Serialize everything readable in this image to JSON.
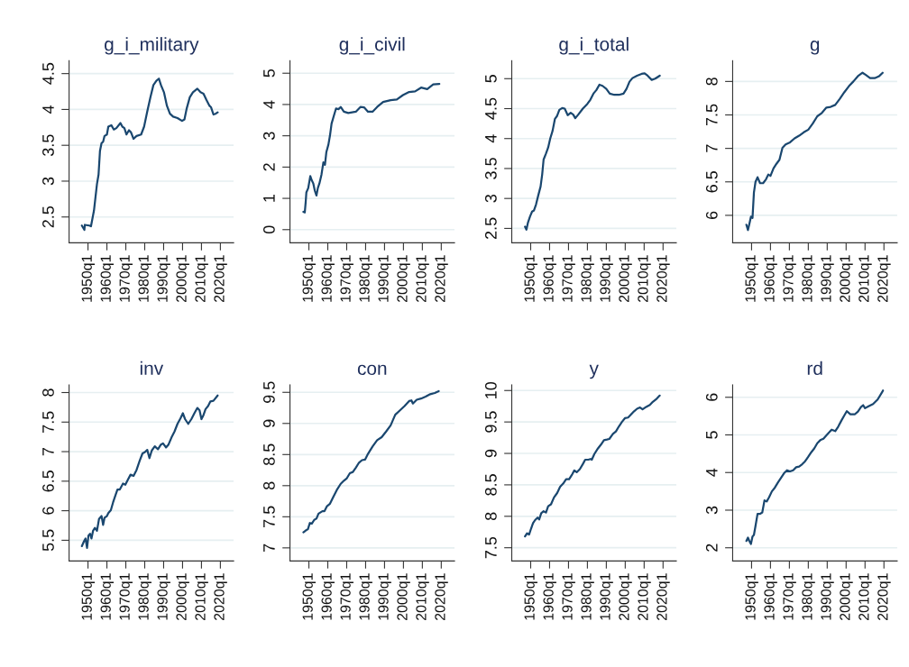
{
  "chart_data": [
    {
      "type": "line",
      "title": "g_i_military",
      "color": "#1a476f",
      "grid": "y",
      "xlim": [
        "1940-01",
        "2027-01"
      ],
      "ylim": [
        2.14,
        4.68
      ],
      "yticks": [
        2.5,
        3,
        3.5,
        4,
        4.5
      ],
      "xticks": [
        {
          "value": "1950-01",
          "label": "1950q1"
        },
        {
          "value": "1960-01",
          "label": "1960q1"
        },
        {
          "value": "1970-01",
          "label": "1970q1"
        },
        {
          "value": "1980-01",
          "label": "1980q1"
        },
        {
          "value": "1990-01",
          "label": "1990q1"
        },
        {
          "value": "2000-01",
          "label": "2000q1"
        },
        {
          "value": "2010-01",
          "label": "2010q1"
        },
        {
          "value": "2020-01",
          "label": "2020q1"
        }
      ],
      "x": [
        "1946-10",
        "1948-02",
        "1948-05",
        "1950-10",
        "1951-08",
        "1953-03",
        "1954-10",
        "1955-08",
        "1956-05",
        "1957-03",
        "1958-01",
        "1958-10",
        "1960-01",
        "1960-10",
        "1962-05",
        "1963-09",
        "1965-01",
        "1967-03",
        "1968-03",
        "1969-04",
        "1970-05",
        "1971-09",
        "1972-10",
        "1974-02",
        "1975-09",
        "1978-02",
        "1979-09",
        "1981-05",
        "1983-01",
        "1984-08",
        "1986-03",
        "1987-07",
        "1988-08",
        "1990-03",
        "1991-10",
        "1993-05",
        "1995-01",
        "1997-05",
        "1999-10",
        "2001-01",
        "2002-03",
        "2003-11",
        "2005-07",
        "2007-11",
        "2009-07",
        "2011-02",
        "2012-09",
        "2014-04",
        "2015-02",
        "2016-05",
        "2017-07",
        "2018-08"
      ],
      "values": [
        2.38,
        2.32,
        2.39,
        2.38,
        2.37,
        2.59,
        2.96,
        3.09,
        3.42,
        3.53,
        3.55,
        3.63,
        3.65,
        3.76,
        3.78,
        3.72,
        3.74,
        3.81,
        3.76,
        3.74,
        3.65,
        3.71,
        3.68,
        3.59,
        3.63,
        3.65,
        3.76,
        3.97,
        4.17,
        4.34,
        4.4,
        4.43,
        4.34,
        4.24,
        4.05,
        3.94,
        3.9,
        3.88,
        3.84,
        3.86,
        4.01,
        4.17,
        4.24,
        4.29,
        4.24,
        4.22,
        4.13,
        4.05,
        4.03,
        3.93,
        3.94,
        3.96
      ]
    },
    {
      "type": "line",
      "title": "g_i_civil",
      "color": "#1a476f",
      "grid": "y",
      "xlim": [
        "1940-01",
        "2027-01"
      ],
      "ylim": [
        -0.42,
        5.4
      ],
      "yticks": [
        0,
        1,
        2,
        3,
        4,
        5
      ],
      "xticks": [
        {
          "value": "1950-01",
          "label": "1950q1"
        },
        {
          "value": "1960-01",
          "label": "1960q1"
        },
        {
          "value": "1970-01",
          "label": "1970q1"
        },
        {
          "value": "1980-01",
          "label": "1980q1"
        },
        {
          "value": "1990-01",
          "label": "1990q1"
        },
        {
          "value": "2000-01",
          "label": "2000q1"
        },
        {
          "value": "2010-01",
          "label": "2010q1"
        },
        {
          "value": "2020-01",
          "label": "2020q1"
        }
      ],
      "x": [
        "1947-02",
        "1947-11",
        "1948-05",
        "1948-09",
        "1949-09",
        "1950-10",
        "1951-08",
        "1952-05",
        "1953-03",
        "1954-01",
        "1954-10",
        "1955-08",
        "1956-09",
        "1957-09",
        "1958-07",
        "1959-04",
        "1960-05",
        "1961-03",
        "1962-01",
        "1963-03",
        "1964-05",
        "1965-09",
        "1966-11",
        "1968-07",
        "1970-11",
        "1974-11",
        "1977-04",
        "1979-03",
        "1981-04",
        "1983-09",
        "1986-02",
        "1989-04",
        "1993-04",
        "1996-07",
        "1999-10",
        "2003-01",
        "2006-03",
        "2009-05",
        "2012-08",
        "2015-10",
        "2019-01"
      ],
      "values": [
        0.57,
        0.55,
        0.9,
        1.19,
        1.33,
        1.71,
        1.57,
        1.48,
        1.24,
        1.09,
        1.33,
        1.48,
        1.76,
        2.15,
        2.07,
        2.48,
        2.72,
        3.01,
        3.39,
        3.63,
        3.87,
        3.85,
        3.92,
        3.77,
        3.73,
        3.77,
        3.92,
        3.91,
        3.77,
        3.77,
        3.92,
        4.08,
        4.14,
        4.16,
        4.3,
        4.4,
        4.42,
        4.54,
        4.49,
        4.64,
        4.66
      ]
    },
    {
      "type": "line",
      "title": "g_i_total",
      "color": "#1a476f",
      "grid": "y",
      "xlim": [
        "1940-01",
        "2027-01"
      ],
      "ylim": [
        2.26,
        5.3
      ],
      "yticks": [
        2.5,
        3,
        3.5,
        4,
        4.5,
        5
      ],
      "xticks": [
        {
          "value": "1950-01",
          "label": "1950q1"
        },
        {
          "value": "1960-01",
          "label": "1960q1"
        },
        {
          "value": "1970-01",
          "label": "1970q1"
        },
        {
          "value": "1980-01",
          "label": "1980q1"
        },
        {
          "value": "1990-01",
          "label": "1990q1"
        },
        {
          "value": "2000-01",
          "label": "2000q1"
        },
        {
          "value": "2010-01",
          "label": "2010q1"
        },
        {
          "value": "2020-01",
          "label": "2020q1"
        }
      ],
      "x": [
        "1947-01",
        "1947-10",
        "1948-08",
        "1949-09",
        "1950-10",
        "1951-10",
        "1952-11",
        "1954-01",
        "1955-04",
        "1956-02",
        "1956-11",
        "1958-02",
        "1959-04",
        "1960-05",
        "1961-08",
        "1962-11",
        "1964-01",
        "1965-03",
        "1966-09",
        "1968-01",
        "1969-08",
        "1971-03",
        "1972-07",
        "1973-08",
        "1975-03",
        "1977-08",
        "1980-01",
        "1981-08",
        "1983-03",
        "1984-10",
        "1986-05",
        "1988-01",
        "1990-01",
        "1991-11",
        "1994-04",
        "1996-09",
        "1999-02",
        "2000-09",
        "2002-04",
        "2003-11",
        "2006-04",
        "2008-09",
        "2010-04",
        "2011-11",
        "2014-01",
        "2015-11",
        "2018-04"
      ],
      "values": [
        2.53,
        2.48,
        2.6,
        2.7,
        2.78,
        2.8,
        2.9,
        3.05,
        3.2,
        3.4,
        3.65,
        3.75,
        3.85,
        4.0,
        4.13,
        4.33,
        4.38,
        4.48,
        4.51,
        4.5,
        4.39,
        4.43,
        4.4,
        4.34,
        4.4,
        4.5,
        4.58,
        4.65,
        4.75,
        4.81,
        4.9,
        4.88,
        4.83,
        4.75,
        4.73,
        4.73,
        4.75,
        4.83,
        4.95,
        5.01,
        5.05,
        5.08,
        5.09,
        5.05,
        4.98,
        5.0,
        5.05
      ]
    },
    {
      "type": "line",
      "title": "g",
      "color": "#1a476f",
      "grid": "y",
      "xlim": [
        "1940-01",
        "2027-01"
      ],
      "ylim": [
        5.59,
        8.31
      ],
      "yticks": [
        6,
        6.5,
        7,
        7.5,
        8
      ],
      "xticks": [
        {
          "value": "1950-01",
          "label": "1950q1"
        },
        {
          "value": "1960-01",
          "label": "1960q1"
        },
        {
          "value": "1970-01",
          "label": "1970q1"
        },
        {
          "value": "1980-01",
          "label": "1980q1"
        },
        {
          "value": "1990-01",
          "label": "1990q1"
        },
        {
          "value": "2000-01",
          "label": "2000q1"
        },
        {
          "value": "2010-01",
          "label": "2010q1"
        },
        {
          "value": "2020-01",
          "label": "2020q1"
        }
      ],
      "x": [
        "1947-04",
        "1948-02",
        "1948-11",
        "1949-09",
        "1950-07",
        "1951-04",
        "1952-02",
        "1953-03",
        "1954-07",
        "1956-02",
        "1957-09",
        "1958-11",
        "1960-01",
        "1961-08",
        "1963-03",
        "1964-10",
        "1966-05",
        "1968-01",
        "1970-05",
        "1972-10",
        "1975-03",
        "1977-08",
        "1980-01",
        "1982-05",
        "1984-10",
        "1987-03",
        "1989-08",
        "1991-11",
        "1994-04",
        "1996-09",
        "1999-02",
        "2001-07",
        "2003-11",
        "2006-04",
        "2008-09",
        "2010-04",
        "2012-09",
        "2015-02",
        "2017-07",
        "2019-05"
      ],
      "values": [
        5.86,
        5.78,
        5.87,
        5.98,
        5.96,
        6.34,
        6.5,
        6.57,
        6.48,
        6.48,
        6.54,
        6.61,
        6.59,
        6.7,
        6.77,
        6.83,
        7.01,
        7.06,
        7.09,
        7.15,
        7.19,
        7.24,
        7.28,
        7.37,
        7.48,
        7.53,
        7.61,
        7.62,
        7.65,
        7.74,
        7.84,
        7.93,
        8.0,
        8.08,
        8.13,
        8.1,
        8.05,
        8.05,
        8.08,
        8.13
      ]
    },
    {
      "type": "line",
      "title": "inv",
      "color": "#1a476f",
      "grid": "y",
      "xlim": [
        "1940-01",
        "2027-01"
      ],
      "ylim": [
        5.15,
        8.13
      ],
      "yticks": [
        5.5,
        6,
        6.5,
        7,
        7.5,
        8
      ],
      "xticks": [
        {
          "value": "1950-01",
          "label": "1950q1"
        },
        {
          "value": "1960-01",
          "label": "1960q1"
        },
        {
          "value": "1970-01",
          "label": "1970q1"
        },
        {
          "value": "1980-01",
          "label": "1980q1"
        },
        {
          "value": "1990-01",
          "label": "1990q1"
        },
        {
          "value": "2000-01",
          "label": "2000q1"
        },
        {
          "value": "2010-01",
          "label": "2010q1"
        },
        {
          "value": "2020-01",
          "label": "2020q1"
        }
      ],
      "x": [
        "1946-10",
        "1947-11",
        "1948-09",
        "1949-07",
        "1950-04",
        "1951-02",
        "1951-11",
        "1952-09",
        "1953-09",
        "1954-10",
        "1955-11",
        "1957-03",
        "1958-01",
        "1958-10",
        "1960-01",
        "1960-10",
        "1962-02",
        "1963-04",
        "1964-07",
        "1965-08",
        "1966-11",
        "1968-07",
        "1969-10",
        "1970-11",
        "1972-07",
        "1974-02",
        "1975-09",
        "1977-04",
        "1978-11",
        "1980-01",
        "1981-05",
        "1982-07",
        "1983-10",
        "1985-05",
        "1987-01",
        "1988-08",
        "1989-09",
        "1991-04",
        "1992-08",
        "1994-03",
        "1995-10",
        "1997-05",
        "1999-01",
        "2000-03",
        "2001-05",
        "2003-01",
        "2004-09",
        "2006-04",
        "2007-11",
        "2009-01",
        "2010-01",
        "2011-02",
        "2012-03",
        "2013-07",
        "2014-10",
        "2016-05",
        "2018-08"
      ],
      "values": [
        5.4,
        5.48,
        5.53,
        5.37,
        5.58,
        5.61,
        5.53,
        5.66,
        5.71,
        5.66,
        5.86,
        5.91,
        5.76,
        5.88,
        5.91,
        5.96,
        6.01,
        6.14,
        6.26,
        6.36,
        6.36,
        6.46,
        6.44,
        6.51,
        6.61,
        6.59,
        6.69,
        6.84,
        6.97,
        6.99,
        7.03,
        6.89,
        7.02,
        7.09,
        7.04,
        7.12,
        7.14,
        7.07,
        7.12,
        7.24,
        7.34,
        7.47,
        7.57,
        7.65,
        7.55,
        7.47,
        7.55,
        7.65,
        7.74,
        7.7,
        7.55,
        7.62,
        7.72,
        7.77,
        7.85,
        7.86,
        7.95
      ]
    },
    {
      "type": "line",
      "title": "con",
      "color": "#1a476f",
      "grid": "y",
      "xlim": [
        "1940-01",
        "2027-01"
      ],
      "ylim": [
        6.79,
        9.62
      ],
      "yticks": [
        7,
        7.5,
        8,
        8.5,
        9,
        9.5
      ],
      "xticks": [
        {
          "value": "1950-01",
          "label": "1950q1"
        },
        {
          "value": "1960-01",
          "label": "1960q1"
        },
        {
          "value": "1970-01",
          "label": "1970q1"
        },
        {
          "value": "1980-01",
          "label": "1980q1"
        },
        {
          "value": "1990-01",
          "label": "1990q1"
        },
        {
          "value": "2000-01",
          "label": "2000q1"
        },
        {
          "value": "2010-01",
          "label": "2010q1"
        },
        {
          "value": "2020-01",
          "label": "2020q1"
        }
      ],
      "x": [
        "1947-02",
        "1948-05",
        "1949-07",
        "1950-07",
        "1951-08",
        "1952-11",
        "1954-01",
        "1955-02",
        "1957-03",
        "1958-04",
        "1959-08",
        "1961-03",
        "1962-10",
        "1964-10",
        "1966-11",
        "1968-07",
        "1970-02",
        "1971-09",
        "1973-04",
        "1974-11",
        "1976-07",
        "1978-02",
        "1979-10",
        "1981-04",
        "1983-09",
        "1986-02",
        "1988-07",
        "1990-11",
        "1993-04",
        "1995-09",
        "1998-03",
        "2000-08",
        "2003-01",
        "2004-04",
        "2005-01",
        "2007-01",
        "2009-05",
        "2011-10",
        "2014-03",
        "2016-08",
        "2018-09"
      ],
      "values": [
        7.25,
        7.28,
        7.3,
        7.4,
        7.39,
        7.45,
        7.47,
        7.55,
        7.59,
        7.59,
        7.67,
        7.71,
        7.81,
        7.93,
        8.03,
        8.08,
        8.12,
        8.2,
        8.22,
        8.29,
        8.37,
        8.41,
        8.42,
        8.51,
        8.63,
        8.73,
        8.78,
        8.87,
        8.97,
        9.14,
        9.21,
        9.28,
        9.36,
        9.37,
        9.32,
        9.38,
        9.4,
        9.43,
        9.47,
        9.49,
        9.52
      ]
    },
    {
      "type": "line",
      "title": "y",
      "color": "#1a476f",
      "grid": "y",
      "xlim": [
        "1940-01",
        "2027-01"
      ],
      "ylim": [
        7.29,
        10.09
      ],
      "yticks": [
        7.5,
        8,
        8.5,
        9,
        9.5,
        10
      ],
      "xticks": [
        {
          "value": "1950-01",
          "label": "1950q1"
        },
        {
          "value": "1960-01",
          "label": "1960q1"
        },
        {
          "value": "1970-01",
          "label": "1970q1"
        },
        {
          "value": "1980-01",
          "label": "1980q1"
        },
        {
          "value": "1990-01",
          "label": "1990q1"
        },
        {
          "value": "2000-01",
          "label": "2000q1"
        },
        {
          "value": "2010-01",
          "label": "2010q1"
        },
        {
          "value": "2020-01",
          "label": "2020q1"
        }
      ],
      "x": [
        "1947-01",
        "1948-02",
        "1949-03",
        "1950-03",
        "1951-04",
        "1952-05",
        "1953-09",
        "1954-07",
        "1955-08",
        "1956-11",
        "1958-02",
        "1959-04",
        "1960-10",
        "1962-05",
        "1964-01",
        "1965-08",
        "1967-03",
        "1968-10",
        "1970-05",
        "1972-01",
        "1973-02",
        "1974-05",
        "1976-01",
        "1977-08",
        "1978-11",
        "1980-07",
        "1981-08",
        "1982-05",
        "1983-09",
        "1985-08",
        "1987-03",
        "1988-10",
        "1990-05",
        "1991-08",
        "1993-07",
        "1995-02",
        "1996-09",
        "1998-04",
        "1999-11",
        "2001-07",
        "2003-02",
        "2004-09",
        "2006-04",
        "2007-11",
        "2009-03",
        "2011-02",
        "2013-01",
        "2014-08",
        "2016-09",
        "2018-04"
      ],
      "values": [
        7.68,
        7.73,
        7.71,
        7.8,
        7.89,
        7.94,
        7.98,
        7.95,
        8.05,
        8.08,
        8.06,
        8.16,
        8.19,
        8.3,
        8.37,
        8.47,
        8.52,
        8.59,
        8.59,
        8.67,
        8.73,
        8.7,
        8.75,
        8.83,
        8.9,
        8.9,
        8.91,
        8.9,
        8.99,
        9.08,
        9.14,
        9.21,
        9.22,
        9.23,
        9.31,
        9.35,
        9.43,
        9.5,
        9.56,
        9.57,
        9.62,
        9.67,
        9.71,
        9.73,
        9.7,
        9.74,
        9.77,
        9.82,
        9.87,
        9.92
      ]
    },
    {
      "type": "line",
      "title": "rd",
      "color": "#1a476f",
      "grid": "y",
      "xlim": [
        "1940-01",
        "2027-01"
      ],
      "ylim": [
        1.65,
        6.33
      ],
      "yticks": [
        2,
        3,
        4,
        5,
        6
      ],
      "xticks": [
        {
          "value": "1950-01",
          "label": "1950q1"
        },
        {
          "value": "1960-01",
          "label": "1960q1"
        },
        {
          "value": "1970-01",
          "label": "1970q1"
        },
        {
          "value": "1980-01",
          "label": "1980q1"
        },
        {
          "value": "1990-01",
          "label": "1990q1"
        },
        {
          "value": "2000-01",
          "label": "2000q1"
        },
        {
          "value": "2010-01",
          "label": "2010q1"
        },
        {
          "value": "2020-01",
          "label": "2020q1"
        }
      ],
      "x": [
        "1947-04",
        "1948-02",
        "1948-11",
        "1949-09",
        "1950-07",
        "1951-04",
        "1952-02",
        "1953-03",
        "1954-07",
        "1955-09",
        "1956-11",
        "1958-01",
        "1959-04",
        "1960-10",
        "1962-05",
        "1964-01",
        "1965-08",
        "1967-03",
        "1968-10",
        "1970-05",
        "1972-01",
        "1973-08",
        "1975-03",
        "1976-10",
        "1978-05",
        "1980-01",
        "1981-08",
        "1983-03",
        "1984-10",
        "1986-05",
        "1988-01",
        "1989-08",
        "1991-02",
        "1992-05",
        "1994-04",
        "1995-11",
        "1997-07",
        "1999-02",
        "2000-05",
        "2002-04",
        "2004-09",
        "2006-04",
        "2007-11",
        "2009-01",
        "2010-01",
        "2011-11",
        "2014-04",
        "2016-09",
        "2019-02",
        "2019-07"
      ],
      "values": [
        2.18,
        2.27,
        2.18,
        2.1,
        2.3,
        2.34,
        2.58,
        2.9,
        2.9,
        2.94,
        3.26,
        3.23,
        3.34,
        3.5,
        3.6,
        3.74,
        3.86,
        3.98,
        4.06,
        4.03,
        4.06,
        4.14,
        4.16,
        4.22,
        4.3,
        4.42,
        4.54,
        4.64,
        4.78,
        4.86,
        4.9,
        4.99,
        5.07,
        5.14,
        5.1,
        5.22,
        5.38,
        5.52,
        5.63,
        5.55,
        5.55,
        5.62,
        5.74,
        5.79,
        5.71,
        5.76,
        5.82,
        5.94,
        6.14,
        6.18
      ]
    }
  ]
}
